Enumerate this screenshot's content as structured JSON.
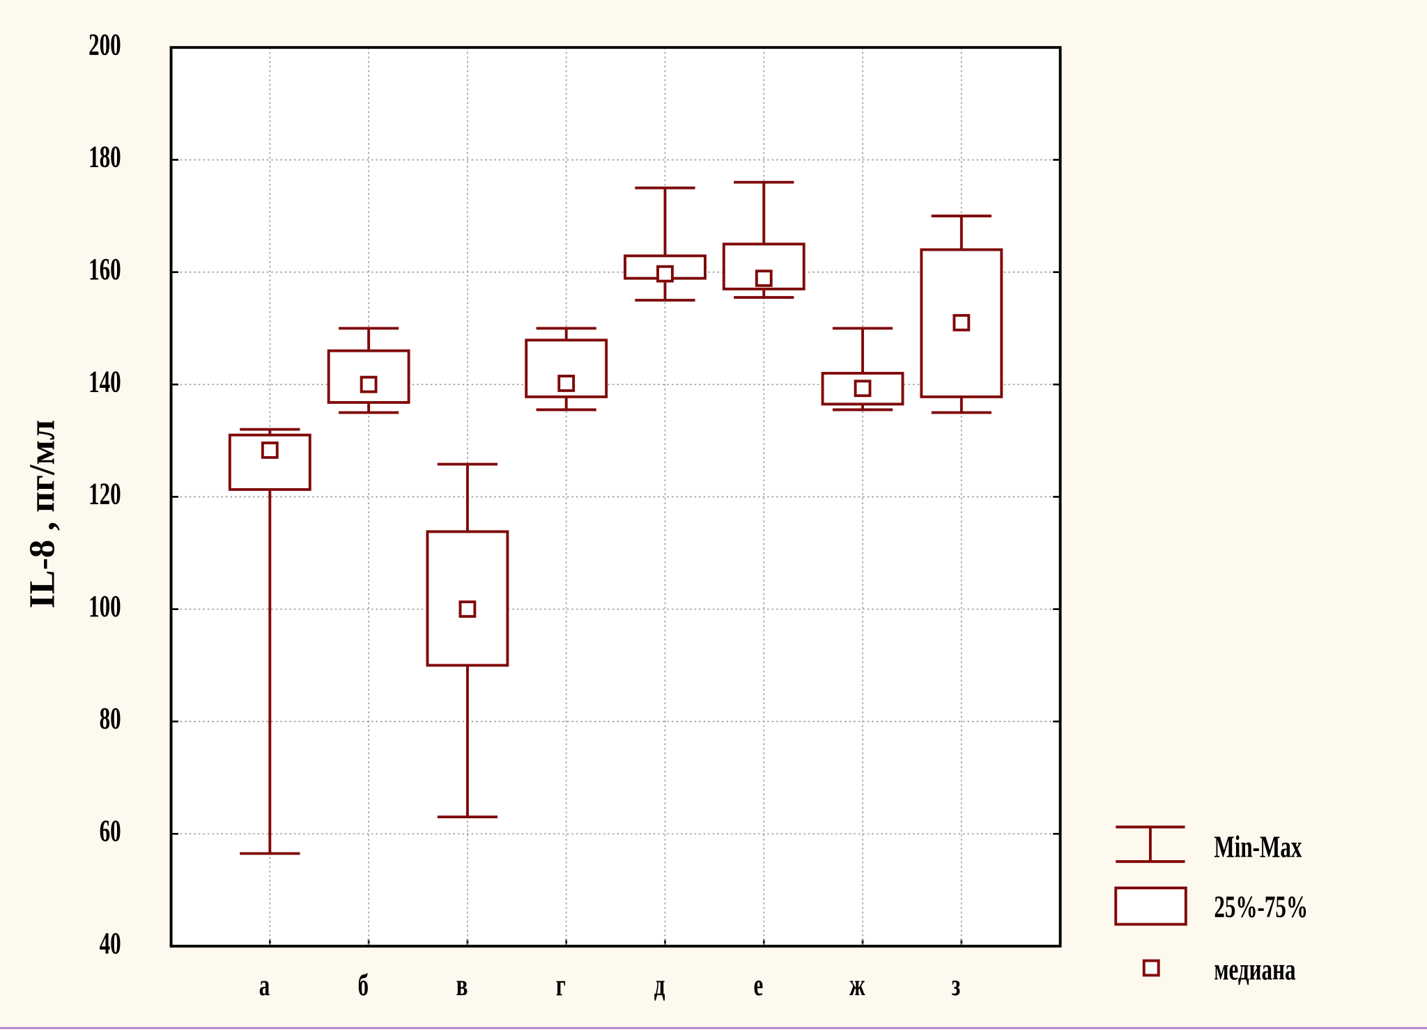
{
  "chart_data": {
    "type": "box",
    "y_label": "IL-8 , пг/мл",
    "categories": [
      "а",
      "б",
      "в",
      "г",
      "д",
      "е",
      "ж",
      "з"
    ],
    "min": [
      56.5,
      135,
      63,
      135.5,
      155,
      155.5,
      135.5,
      135
    ],
    "q1": [
      121.3,
      136.8,
      90,
      137.8,
      158.9,
      157,
      136.5,
      137.8
    ],
    "median": [
      128.3,
      140,
      100,
      140.2,
      159.7,
      158.9,
      139.3,
      151
    ],
    "q3": [
      131,
      146,
      113.8,
      147.9,
      162.9,
      165,
      142,
      164
    ],
    "max": [
      132,
      150,
      125.8,
      150,
      175,
      176,
      150,
      170
    ],
    "color": "#7f0a0a",
    "ylim": [
      40,
      200
    ],
    "yticks": [
      40,
      60,
      80,
      100,
      120,
      140,
      160,
      180,
      200
    ],
    "grid": true,
    "legend": {
      "whisker": "Min-Max",
      "box": "25%-75%",
      "median": "медиана"
    }
  }
}
